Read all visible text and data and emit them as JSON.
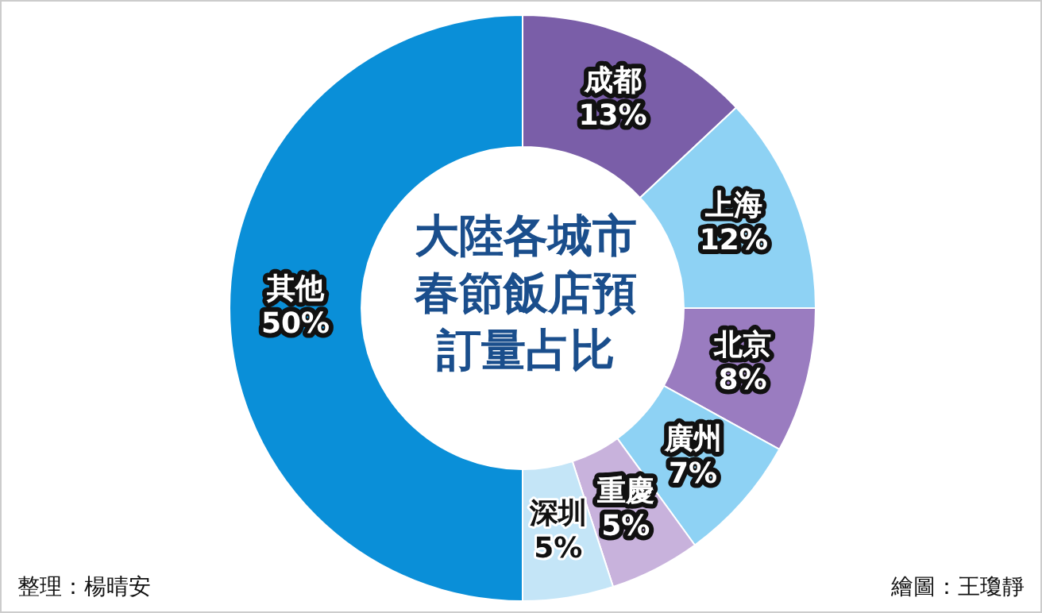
{
  "chart_data": {
    "type": "donut",
    "title": "大陸各城市春節飯店預訂量占比",
    "categories": [
      "成都",
      "上海",
      "北京",
      "廣州",
      "重慶",
      "深圳",
      "其他"
    ],
    "values": [
      13,
      12,
      8,
      7,
      5,
      5,
      50
    ],
    "value_labels": [
      "13%",
      "12%",
      "8%",
      "7%",
      "5%",
      "5%",
      "50%"
    ],
    "colors": [
      "#7a5ea8",
      "#8ed2f4",
      "#9a7cc0",
      "#8ed2f4",
      "#c8b2dc",
      "#c4e5f7",
      "#0a8fd8"
    ],
    "legend": false,
    "annotations": [
      "整理：楊晴安",
      "繪圖：王瓊靜"
    ]
  }
}
